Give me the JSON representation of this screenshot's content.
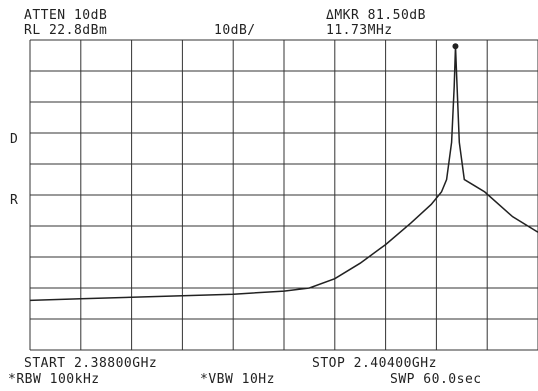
{
  "header": {
    "atten": "ATTEN 10dB",
    "ref_level": "RL 22.8dBm",
    "scale": "10dB/",
    "marker_delta": "ΔMKR 81.50dB",
    "marker_freq": "11.73MHz"
  },
  "side_labels": {
    "d": "D",
    "r": "R"
  },
  "footer": {
    "start": "START 2.38800GHz",
    "stop": "STOP 2.40400GHz",
    "rbw": "*RBW 100kHz",
    "vbw": "*VBW 10Hz",
    "sweep": "SWP 60.0sec"
  },
  "chart_data": {
    "type": "line",
    "x_unit": "GHz",
    "y_unit": "dB relative to reference",
    "xlim": [
      2.388,
      2.404
    ],
    "ylim": [
      -100,
      0
    ],
    "grid": true,
    "series": [
      {
        "x": [
          2.388,
          2.3896,
          2.3912,
          2.3928,
          2.3944,
          2.396,
          2.3968,
          2.3976,
          2.3984,
          2.3992,
          2.4,
          2.40064,
          2.40096,
          2.40112,
          2.40128,
          2.40136,
          2.4014,
          2.40144,
          2.40152,
          2.40168,
          2.402,
          2.40232,
          2.4032,
          2.404
        ],
        "y": [
          -84,
          -83.5,
          -83,
          -82.5,
          -82,
          -81,
          -80,
          -77,
          -72,
          -66,
          -59,
          -53,
          -49,
          -45,
          -33,
          -15,
          -2,
          -12,
          -33,
          -45,
          -47,
          -49,
          -57,
          -62
        ]
      }
    ]
  }
}
